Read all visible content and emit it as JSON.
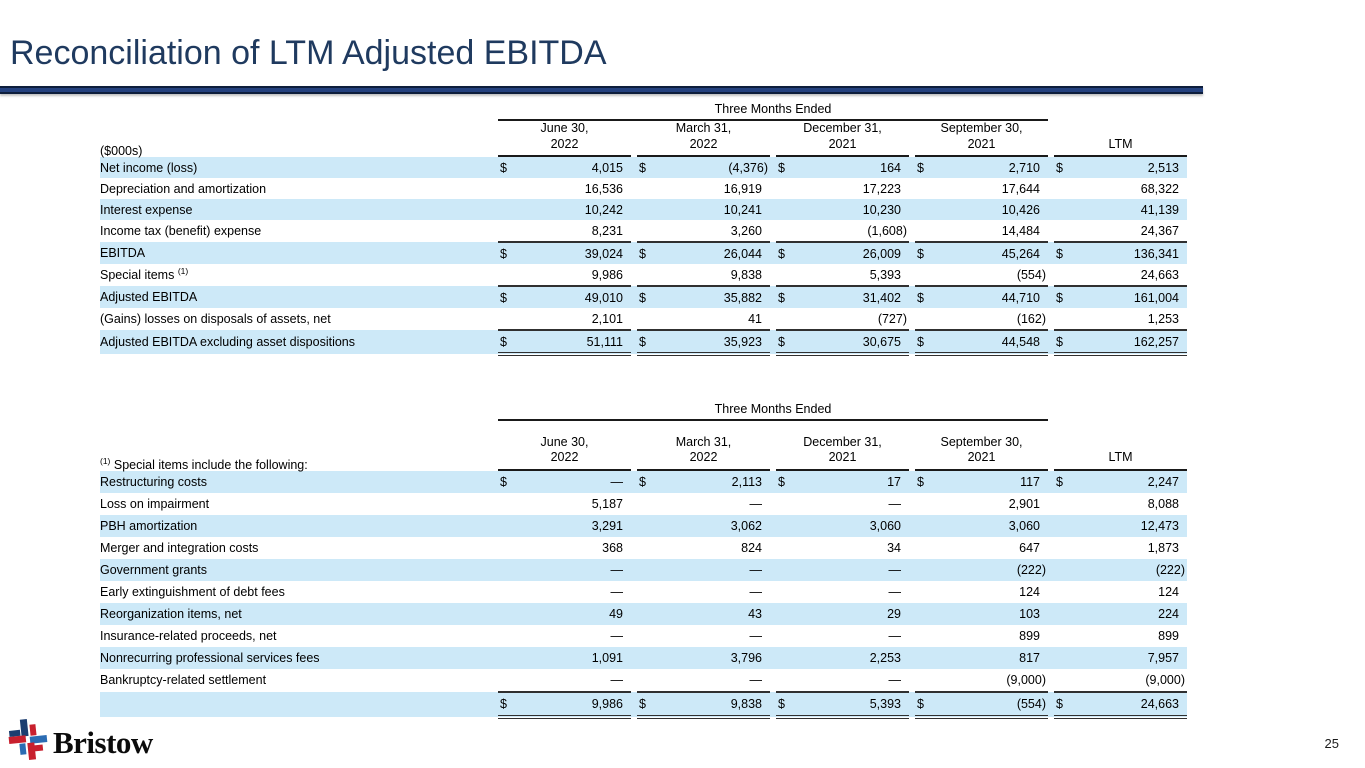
{
  "slide": {
    "title": "Reconciliation of LTM Adjusted EBITDA",
    "page_number": "25",
    "logo_text": "Bristow"
  },
  "colors": {
    "title": "#1f3a5f",
    "title_rule": "#24417e",
    "row_band": "#cde9f8",
    "logo_red": "#c8202e",
    "logo_navy": "#1c3e70",
    "logo_blue": "#2b6cb3"
  },
  "tables": [
    {
      "span_header": "Three Months Ended",
      "corner_label": {
        "sup": "",
        "text": "($000s)"
      },
      "columns": [
        {
          "line1": "June 30,",
          "line2": "2022"
        },
        {
          "line1": "March 31,",
          "line2": "2022"
        },
        {
          "line1": "December 31,",
          "line2": "2021"
        },
        {
          "line1": "September 30,",
          "line2": "2021"
        },
        {
          "line1": "LTM",
          "line2": ""
        }
      ],
      "rows": [
        {
          "label": "Net income (loss)",
          "sup": "",
          "indent": 0,
          "dollar": true,
          "band": true,
          "bt": false,
          "dbb": false,
          "values": [
            "4,015",
            "(4,376)",
            "164",
            "2,710",
            "2,513"
          ]
        },
        {
          "label": "Depreciation and amortization",
          "sup": "",
          "indent": 1,
          "dollar": false,
          "band": false,
          "bt": false,
          "dbb": false,
          "values": [
            "16,536",
            "16,919",
            "17,223",
            "17,644",
            "68,322"
          ]
        },
        {
          "label": "Interest expense",
          "sup": "",
          "indent": 1,
          "dollar": false,
          "band": true,
          "bt": false,
          "dbb": false,
          "values": [
            "10,242",
            "10,241",
            "10,230",
            "10,426",
            "41,139"
          ]
        },
        {
          "label": "Income tax (benefit) expense",
          "sup": "",
          "indent": 1,
          "dollar": false,
          "band": false,
          "bt": false,
          "dbb": false,
          "values": [
            "8,231",
            "3,260",
            "(1,608)",
            "14,484",
            "24,367"
          ]
        },
        {
          "label": "EBITDA",
          "sup": "",
          "indent": 0,
          "dollar": true,
          "band": true,
          "bt": true,
          "dbb": false,
          "values": [
            "39,024",
            "26,044",
            "26,009",
            "45,264",
            "136,341"
          ]
        },
        {
          "label": "Special items",
          "sup": "(1)",
          "indent": 1,
          "dollar": false,
          "band": false,
          "bt": false,
          "dbb": false,
          "values": [
            "9,986",
            "9,838",
            "5,393",
            "(554)",
            "24,663"
          ]
        },
        {
          "label": "Adjusted EBITDA",
          "sup": "",
          "indent": 0,
          "dollar": true,
          "band": true,
          "bt": true,
          "dbb": false,
          "values": [
            "49,010",
            "35,882",
            "31,402",
            "44,710",
            "161,004"
          ]
        },
        {
          "label": "(Gains) losses on disposals of assets, net",
          "sup": "",
          "indent": 2,
          "dollar": false,
          "band": false,
          "bt": false,
          "dbb": false,
          "values": [
            "2,101",
            "41",
            "(727)",
            "(162)",
            "1,253"
          ]
        },
        {
          "label": "Adjusted EBITDA excluding asset dispositions",
          "sup": "",
          "indent": 0,
          "dollar": true,
          "band": true,
          "bt": true,
          "dbb": true,
          "values": [
            "51,111",
            "35,923",
            "30,675",
            "44,548",
            "162,257"
          ]
        }
      ]
    },
    {
      "span_header": "Three Months Ended",
      "corner_label": {
        "sup": "(1)",
        "text": "Special items include the following:"
      },
      "columns": [
        {
          "line1": "June 30,",
          "line2": "2022"
        },
        {
          "line1": "March 31,",
          "line2": "2022"
        },
        {
          "line1": "December 31,",
          "line2": "2021"
        },
        {
          "line1": "September 30,",
          "line2": "2021"
        },
        {
          "line1": "LTM",
          "line2": ""
        }
      ],
      "rows": [
        {
          "label": "Restructuring costs",
          "sup": "",
          "indent": 0,
          "dollar": true,
          "band": true,
          "bt": false,
          "dbb": false,
          "values": [
            "—",
            "2,113",
            "17",
            "117",
            "2,247"
          ]
        },
        {
          "label": "Loss on impairment",
          "sup": "",
          "indent": 0,
          "dollar": false,
          "band": false,
          "bt": false,
          "dbb": false,
          "values": [
            "5,187",
            "—",
            "—",
            "2,901",
            "8,088"
          ]
        },
        {
          "label": "PBH amortization",
          "sup": "",
          "indent": 0,
          "dollar": false,
          "band": true,
          "bt": false,
          "dbb": false,
          "values": [
            "3,291",
            "3,062",
            "3,060",
            "3,060",
            "12,473"
          ]
        },
        {
          "label": "Merger and integration costs",
          "sup": "",
          "indent": 0,
          "dollar": false,
          "band": false,
          "bt": false,
          "dbb": false,
          "values": [
            "368",
            "824",
            "34",
            "647",
            "1,873"
          ]
        },
        {
          "label": "Government grants",
          "sup": "",
          "indent": 0,
          "dollar": false,
          "band": true,
          "bt": false,
          "dbb": false,
          "values": [
            "—",
            "—",
            "—",
            "(222)",
            "(222)"
          ]
        },
        {
          "label": "Early extinguishment of debt fees",
          "sup": "",
          "indent": 0,
          "dollar": false,
          "band": false,
          "bt": false,
          "dbb": false,
          "values": [
            "—",
            "—",
            "—",
            "124",
            "124"
          ]
        },
        {
          "label": "Reorganization items, net",
          "sup": "",
          "indent": 0,
          "dollar": false,
          "band": true,
          "bt": false,
          "dbb": false,
          "values": [
            "49",
            "43",
            "29",
            "103",
            "224"
          ]
        },
        {
          "label": "Insurance-related proceeds, net",
          "sup": "",
          "indent": 0,
          "dollar": false,
          "band": false,
          "bt": false,
          "dbb": false,
          "values": [
            "—",
            "—",
            "—",
            "899",
            "899"
          ]
        },
        {
          "label": "Nonrecurring professional services fees",
          "sup": "",
          "indent": 0,
          "dollar": false,
          "band": true,
          "bt": false,
          "dbb": false,
          "values": [
            "1,091",
            "3,796",
            "2,253",
            "817",
            "7,957"
          ]
        },
        {
          "label": "Bankruptcy-related settlement",
          "sup": "",
          "indent": 0,
          "dollar": false,
          "band": false,
          "bt": false,
          "dbb": false,
          "values": [
            "—",
            "—",
            "—",
            "(9,000)",
            "(9,000)"
          ]
        },
        {
          "label": "",
          "sup": "",
          "indent": 0,
          "dollar": true,
          "band": true,
          "bt": true,
          "dbb": true,
          "values": [
            "9,986",
            "9,838",
            "5,393",
            "(554)",
            "24,663"
          ]
        }
      ]
    }
  ]
}
